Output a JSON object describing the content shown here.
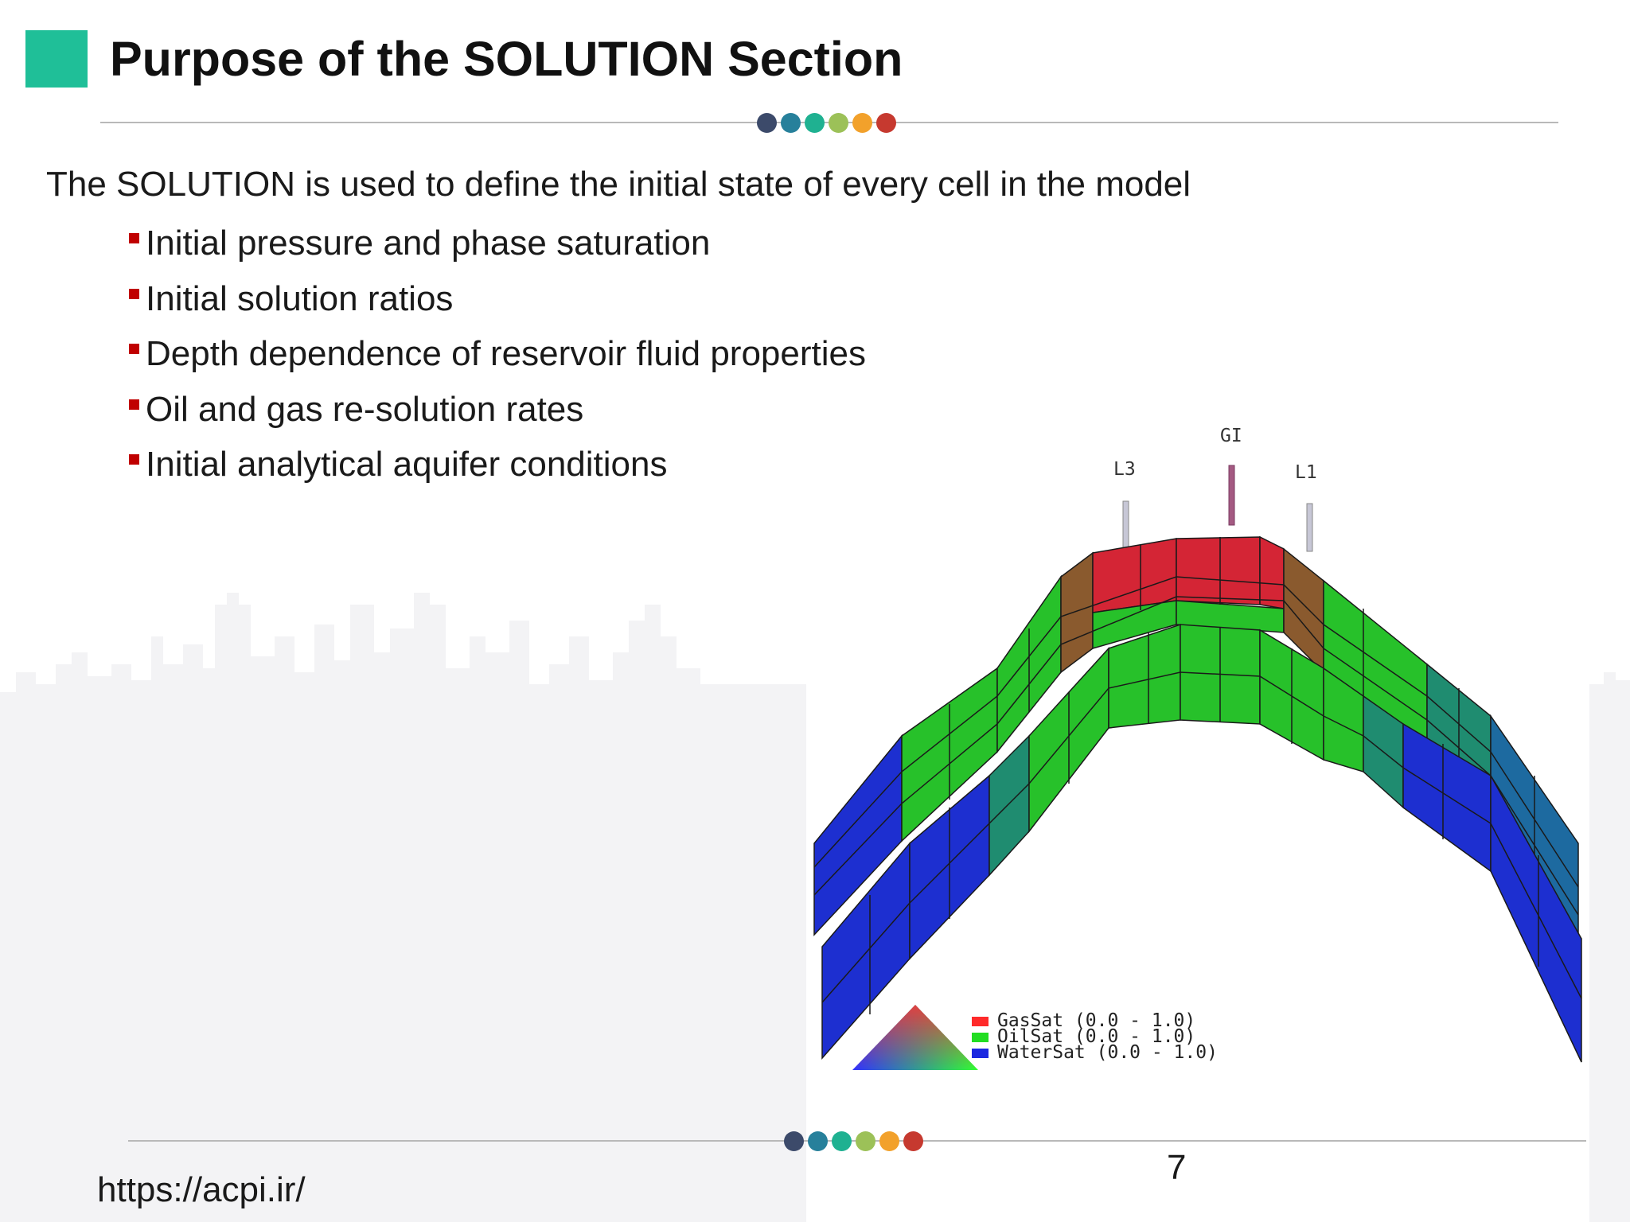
{
  "slide": {
    "title": "Purpose of the SOLUTION Section",
    "intro": "The SOLUTION is used to define the initial state of every cell in the model",
    "bullets": [
      "Initial pressure and phase saturation",
      "Initial solution ratios",
      "Depth dependence of reservoir fluid properties",
      "Oil and gas re-solution rates",
      "Initial analytical aquifer conditions"
    ],
    "page_number": "7",
    "url": "https://acpi.ir/"
  },
  "figure": {
    "wells": {
      "left": "L3",
      "center": "GI",
      "right": "L1"
    },
    "legend": [
      {
        "label": "GasSat (0.0 - 1.0)",
        "color": "#ff2a2a"
      },
      {
        "label": "OilSat (0.0 - 1.0)",
        "color": "#22dd22"
      },
      {
        "label": "WaterSat (0.0 - 1.0)",
        "color": "#1c28e0"
      }
    ],
    "colors": {
      "gas": "#d42535",
      "gas_oil": "#8a5a2e",
      "oil": "#27c12a",
      "oil_water": "#1f8c70",
      "water": "#1d2fd0"
    }
  },
  "theme": {
    "accent": "#1fbf98",
    "bullet": "#c00000",
    "dots": [
      "#3c4a6a",
      "#27809b",
      "#1fb191",
      "#9cc158",
      "#f2a12b",
      "#c6392f"
    ]
  }
}
